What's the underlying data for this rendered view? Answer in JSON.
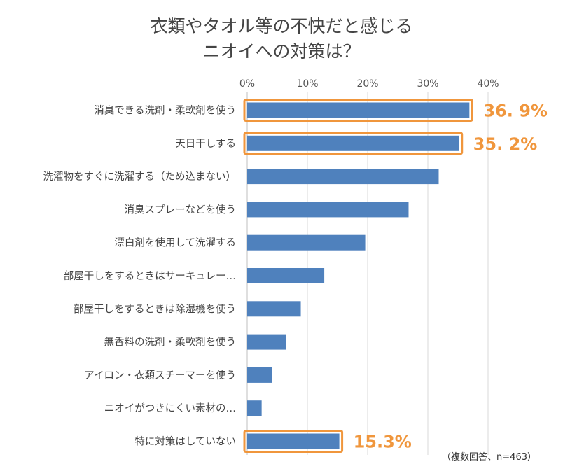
{
  "chart_data": {
    "type": "bar",
    "orientation": "horizontal",
    "title": [
      "衣類やタオル等の不快だと感じる",
      "ニオイへの対策は？"
    ],
    "categories": [
      "消臭できる洗剤・柔軟剤を使う",
      "天日干しする",
      "洗濯物をすぐに洗濯する（ため込まない）",
      "消臭スプレーなどを使う",
      "漂白剤を使用して洗濯する",
      "部屋干しをするときはサーキュレー…",
      "部屋干しをするときは除湿機を使う",
      "無香料の洗剤・柔軟剤を使う",
      "アイロン・衣類スチーマーを使う",
      "ニオイがつきにくい素材の…",
      "特に対策はしていない"
    ],
    "values": [
      36.9,
      35.2,
      31.8,
      26.8,
      19.6,
      12.8,
      8.9,
      6.4,
      4.1,
      2.4,
      15.3
    ],
    "xlim": [
      0,
      40
    ],
    "xticks": [
      "0%",
      "10%",
      "20%",
      "30%",
      "40%"
    ],
    "grid": true,
    "highlighted": [
      {
        "index": 0,
        "label": "36. 9%"
      },
      {
        "index": 1,
        "label": "35. 2%"
      },
      {
        "index": 10,
        "label": "15.3%"
      }
    ],
    "note": "（複数回答、n=463）",
    "bar_color": "#4F81BD",
    "highlight_color": "#F0963C",
    "grid_color": "#D9D9D9"
  }
}
